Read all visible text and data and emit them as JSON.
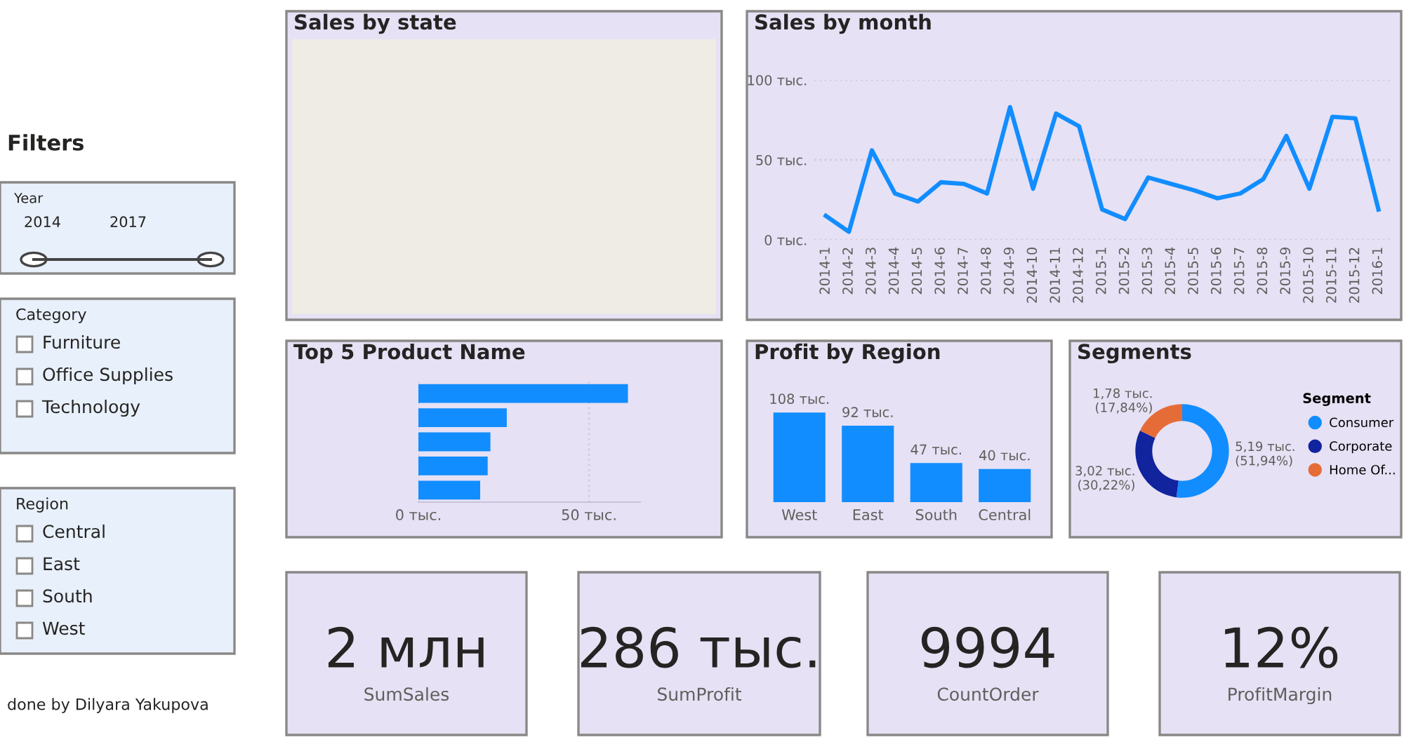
{
  "chart_data": [
    {
      "type": "other",
      "title": "Filters",
      "annotations": [
        "done by Dilyara Yakupova"
      ]
    },
    {
      "type": "other",
      "title": "Year",
      "annotations": [
        "2014",
        "2017"
      ]
    },
    {
      "type": "other",
      "title": "Category",
      "annotations": [
        "Furniture",
        "Office Supplies",
        "Technology"
      ]
    },
    {
      "type": "other",
      "title": "Region",
      "annotations": [
        "Central",
        "East",
        "South",
        "West"
      ]
    },
    {
      "type": "other",
      "title": "Sales by state"
    },
    {
      "type": "line",
      "title": "Sales by month",
      "color": "#118dff",
      "grid": "y",
      "categories": [
        "2014-1",
        "2014-2",
        "2014-3",
        "2014-4",
        "2014-5",
        "2014-6",
        "2014-7",
        "2014-8",
        "2014-9",
        "2014-10",
        "2014-11",
        "2014-12",
        "2015-1",
        "2015-2",
        "2015-3",
        "2015-4",
        "2015-5",
        "2015-6",
        "2015-7",
        "2015-8",
        "2015-9",
        "2015-10",
        "2015-11",
        "2015-12",
        "2016-1"
      ],
      "values": [
        15,
        5,
        56,
        29,
        24,
        36,
        35,
        29,
        83,
        32,
        79,
        71,
        19,
        13,
        39,
        35,
        31,
        26,
        29,
        38,
        65,
        32,
        77,
        76,
        19
      ],
      "ylim": [
        0,
        100
      ],
      "yticks": [
        {
          "value": 0,
          "label": "0 тыс."
        },
        {
          "value": 50,
          "label": "50 тыс."
        },
        {
          "value": 100,
          "label": "100 тыс."
        }
      ]
    },
    {
      "type": "bar",
      "orientation": "horizontal",
      "title": "Top 5 Product Name",
      "color": "#118dff",
      "grid": "x",
      "categories": [
        null,
        null,
        null,
        null,
        null
      ],
      "values": [
        61.4,
        25.9,
        21.1,
        20.3,
        18.1
      ],
      "xlim": [
        0,
        65
      ],
      "xticks": [
        {
          "value": 0,
          "label": "0 тыс."
        },
        {
          "value": 50,
          "label": "50 тыс."
        }
      ]
    },
    {
      "type": "bar",
      "title": "Profit by Region",
      "color": "#118dff",
      "categories": [
        "West",
        "East",
        "South",
        "Central"
      ],
      "values": [
        108,
        92,
        47,
        40
      ],
      "value_labels": [
        "108 тыс.",
        "92 тыс.",
        "47 тыс.",
        "40 тыс."
      ]
    },
    {
      "type": "donut",
      "title": "Segments",
      "legend": "right",
      "legend_title": "Segment",
      "categories": [
        "Consumer",
        "Corporate",
        "Home Of..."
      ],
      "values": [
        5.19,
        3.02,
        1.78
      ],
      "colors": [
        "#118dff",
        "#12239e",
        "#e66c37"
      ],
      "value_labels": [
        "5,19 тыс.\n(51,94%)",
        "3,02 тыс.\n(30,22%)",
        "1,78 тыс.\n(17,84%)"
      ]
    },
    {
      "type": "other",
      "annotations": [
        "2 млн",
        "SumSales"
      ]
    },
    {
      "type": "other",
      "annotations": [
        "286 тыс.",
        "SumProfit"
      ]
    },
    {
      "type": "other",
      "annotations": [
        "9994",
        "CountOrder"
      ]
    },
    {
      "type": "other",
      "annotations": [
        "12%",
        "ProfitMargin"
      ]
    }
  ]
}
